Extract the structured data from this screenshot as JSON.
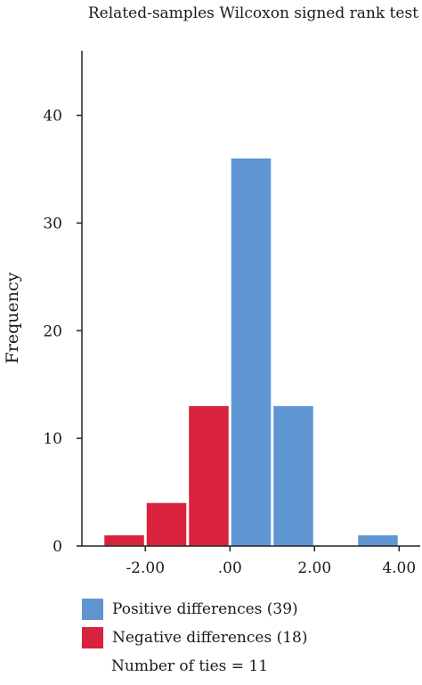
{
  "chart_data": {
    "type": "bar",
    "title": "Related-samples Wilcoxon signed rank test",
    "xlabel": "",
    "ylabel": "Frequency",
    "xlim": [
      -3.5,
      4.5
    ],
    "ylim": [
      0,
      46
    ],
    "x_ticks": [
      {
        "value": -2,
        "label": "-2.00"
      },
      {
        "value": 0,
        "label": ".00"
      },
      {
        "value": 2,
        "label": "2.00"
      },
      {
        "value": 4,
        "label": "4.00"
      }
    ],
    "y_ticks": [
      0,
      10,
      20,
      30,
      40
    ],
    "bin_width": 1,
    "series": [
      {
        "name": "Negative differences",
        "color": "#d9223e",
        "bins": [
          {
            "x0": -3,
            "x1": -2,
            "count": 1
          },
          {
            "x0": -2,
            "x1": -1,
            "count": 4
          },
          {
            "x0": -1,
            "x1": 0,
            "count": 13
          }
        ]
      },
      {
        "name": "Positive differences",
        "color": "#5f96d2",
        "bins": [
          {
            "x0": 0,
            "x1": 1,
            "count": 36
          },
          {
            "x0": 1,
            "x1": 2,
            "count": 13
          },
          {
            "x0": 3,
            "x1": 4,
            "count": 1
          }
        ]
      }
    ],
    "legend": [
      {
        "label": "Positive differences (39)",
        "color": "#5f96d2"
      },
      {
        "label": "Negative differences (18)",
        "color": "#d9223e"
      }
    ],
    "note": "Number of ties = 11",
    "legend_position": "bottom"
  }
}
